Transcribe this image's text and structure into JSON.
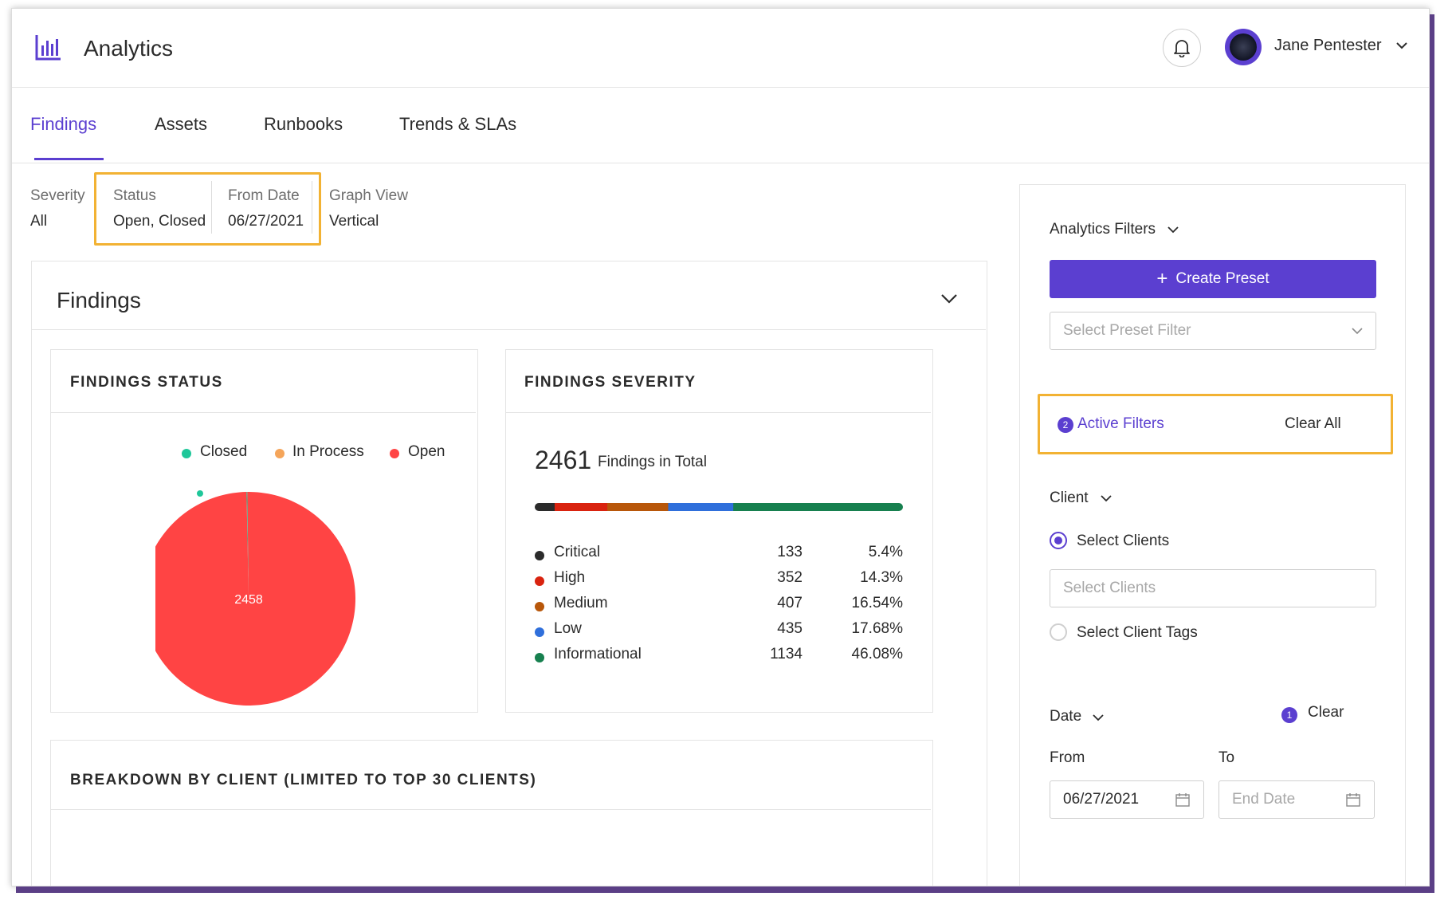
{
  "app": {
    "title": "Analytics",
    "user_name": "Jane Pentester"
  },
  "tabs": [
    {
      "label": "Findings",
      "active": true
    },
    {
      "label": "Assets"
    },
    {
      "label": "Runbooks"
    },
    {
      "label": "Trends & SLAs"
    }
  ],
  "summary": [
    {
      "label": "Severity",
      "value": "All"
    },
    {
      "label": "Status",
      "value": "Open, Closed"
    },
    {
      "label": "From Date",
      "value": "06/27/2021"
    },
    {
      "label": "Graph View",
      "value": "Vertical"
    }
  ],
  "findings_section": {
    "title": "Findings"
  },
  "status_card": {
    "title": "FINDINGS STATUS",
    "legend": [
      {
        "label": "Closed",
        "color": "#1fc79a"
      },
      {
        "label": "In Process",
        "color": "#f5a55a"
      },
      {
        "label": "Open",
        "color": "#ff4444"
      }
    ],
    "pie_label": "2458"
  },
  "severity_card": {
    "title": "FINDINGS SEVERITY",
    "total": "2461",
    "total_label": "Findings in Total",
    "rows": [
      {
        "name": "Critical",
        "count": "133",
        "pct": "5.4%",
        "color": "#2b2b2b"
      },
      {
        "name": "High",
        "count": "352",
        "pct": "14.3%",
        "color": "#d9230f"
      },
      {
        "name": "Medium",
        "count": "407",
        "pct": "16.54%",
        "color": "#b8570a"
      },
      {
        "name": "Low",
        "count": "435",
        "pct": "17.68%",
        "color": "#2f6fdb"
      },
      {
        "name": "Informational",
        "count": "1134",
        "pct": "46.08%",
        "color": "#17804f"
      }
    ]
  },
  "chart_data": {
    "type": "pie",
    "categories": [
      "Closed",
      "In Process",
      "Open"
    ],
    "values": [
      3,
      0,
      2458
    ],
    "colors": [
      "#1fc79a",
      "#f5a55a",
      "#ff4444"
    ],
    "title": "FINDINGS STATUS"
  },
  "breakdown_card": {
    "title": "BREAKDOWN BY CLIENT (LIMITED TO TOP 30 CLIENTS)"
  },
  "filters_panel": {
    "title": "Analytics Filters",
    "create_preset": "Create Preset",
    "preset_placeholder": "Select Preset Filter",
    "active_filters_count": "2",
    "active_filters_label": "Active Filters",
    "clear_all": "Clear All",
    "client_label": "Client",
    "select_clients_radio": "Select Clients",
    "select_clients_placeholder": "Select Clients",
    "select_client_tags_radio": "Select Client Tags",
    "date_label": "Date",
    "date_badge": "1",
    "date_clear": "Clear",
    "from_label": "From",
    "from_value": "06/27/2021",
    "to_label": "To",
    "to_placeholder": "End Date"
  }
}
